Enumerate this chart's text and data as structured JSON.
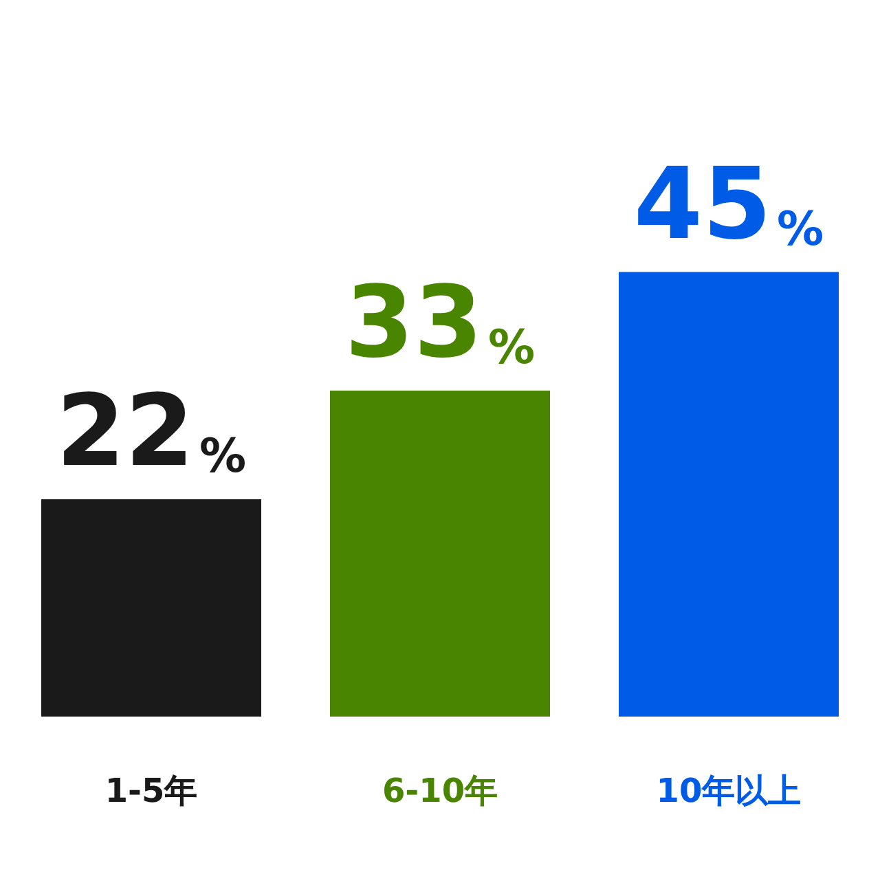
{
  "chart_data": {
    "type": "bar",
    "categories": [
      "1-5年",
      "6-10年",
      "10年以上"
    ],
    "values": [
      22,
      33,
      45
    ],
    "colors": [
      "#1a1a1a",
      "#4a8500",
      "#005ce6"
    ],
    "value_labels": [
      "22%",
      "33%",
      "45%"
    ]
  }
}
